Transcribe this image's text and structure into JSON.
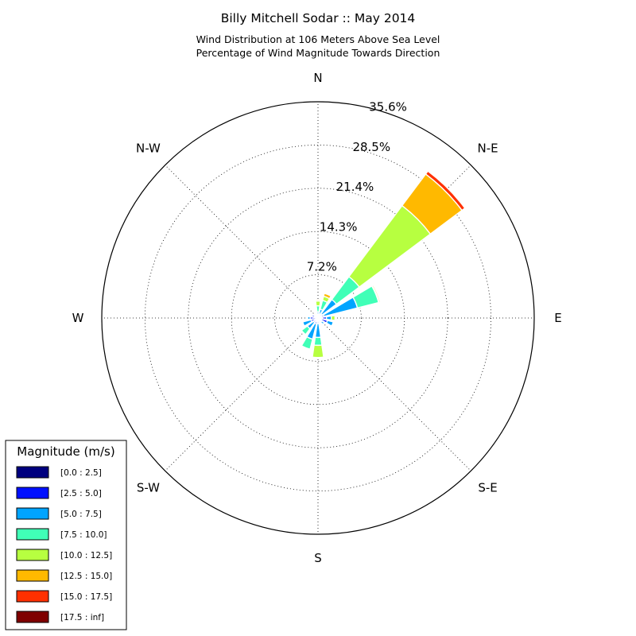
{
  "chart_data": {
    "type": "windrose",
    "title": "Billy Mitchell Sodar :: May 2014",
    "subtitle_lines": [
      "Wind Distribution at 106 Meters Above Sea Level",
      "Percentage of Wind Magnitude Towards Direction"
    ],
    "directions": [
      "N",
      "N-E",
      "E",
      "S-E",
      "S",
      "S-W",
      "W",
      "N-W"
    ],
    "ring_labels": [
      "7.2%",
      "14.3%",
      "21.4%",
      "28.5%",
      "35.6%"
    ],
    "rmax_percent": 35.6,
    "grid": true,
    "legend_title": "Magnitude (m/s)",
    "legend_position": "lower-left",
    "bins": [
      {
        "label": "[0.0 : 2.5]",
        "color": "#00007f"
      },
      {
        "label": "[2.5 : 5.0]",
        "color": "#0010ff"
      },
      {
        "label": "[5.0 : 7.5]",
        "color": "#00a4ff"
      },
      {
        "label": "[7.5 : 10.0]",
        "color": "#40ffb7"
      },
      {
        "label": "[10.0 : 12.5]",
        "color": "#b7ff40"
      },
      {
        "label": "[12.5 : 15.0]",
        "color": "#ffb900"
      },
      {
        "label": "[15.0 : 17.5]",
        "color": "#ff3000"
      },
      {
        "label": "[17.5 : inf]",
        "color": "#7f0000"
      }
    ],
    "sectors_deg": [
      0,
      22.5,
      45,
      67.5,
      90,
      112.5,
      135,
      157.5,
      180,
      202.5,
      225,
      247.5,
      270,
      292.5,
      315,
      337.5
    ],
    "cumulative_percent": [
      [
        0.2,
        0.5,
        1.0,
        2.0,
        2.8,
        3.0,
        3.0,
        3.0
      ],
      [
        0.3,
        0.7,
        1.5,
        3.0,
        3.7,
        4.2,
        4.2,
        4.2
      ],
      [
        0.4,
        0.8,
        3.8,
        8.5,
        23.1,
        29.6,
        30.2,
        30.2
      ],
      [
        0.5,
        1.0,
        6.7,
        10.3,
        10.4,
        10.6,
        10.6,
        10.6
      ],
      [
        0.7,
        1.4,
        2.2,
        2.2,
        2.8,
        2.8,
        2.8,
        2.8
      ],
      [
        0.6,
        1.6,
        2.6,
        2.6,
        2.6,
        2.6,
        2.6,
        2.6
      ],
      [
        0.3,
        0.8,
        1.3,
        1.3,
        1.3,
        1.3,
        1.3,
        1.3
      ],
      [
        0.2,
        0.5,
        0.8,
        0.8,
        0.8,
        0.8,
        0.8,
        0.8
      ],
      [
        0.3,
        0.9,
        3.2,
        4.5,
        6.5,
        6.5,
        6.5,
        6.5
      ],
      [
        0.3,
        1.0,
        3.6,
        5.3,
        5.3,
        5.3,
        5.3,
        5.3
      ],
      [
        0.3,
        0.9,
        2.2,
        3.4,
        3.4,
        3.4,
        3.4,
        3.4
      ],
      [
        0.4,
        1.2,
        2.6,
        2.6,
        2.6,
        2.6,
        2.6,
        2.6
      ],
      [
        0.4,
        1.3,
        1.7,
        1.7,
        1.7,
        1.7,
        1.7,
        1.7
      ],
      [
        0.3,
        1.0,
        1.2,
        1.2,
        1.2,
        1.2,
        1.2,
        1.2
      ],
      [
        0.2,
        0.4,
        0.6,
        0.6,
        0.6,
        0.6,
        0.6,
        0.6
      ],
      [
        0.1,
        0.2,
        0.3,
        0.3,
        0.3,
        0.3,
        0.3,
        0.3
      ]
    ]
  }
}
